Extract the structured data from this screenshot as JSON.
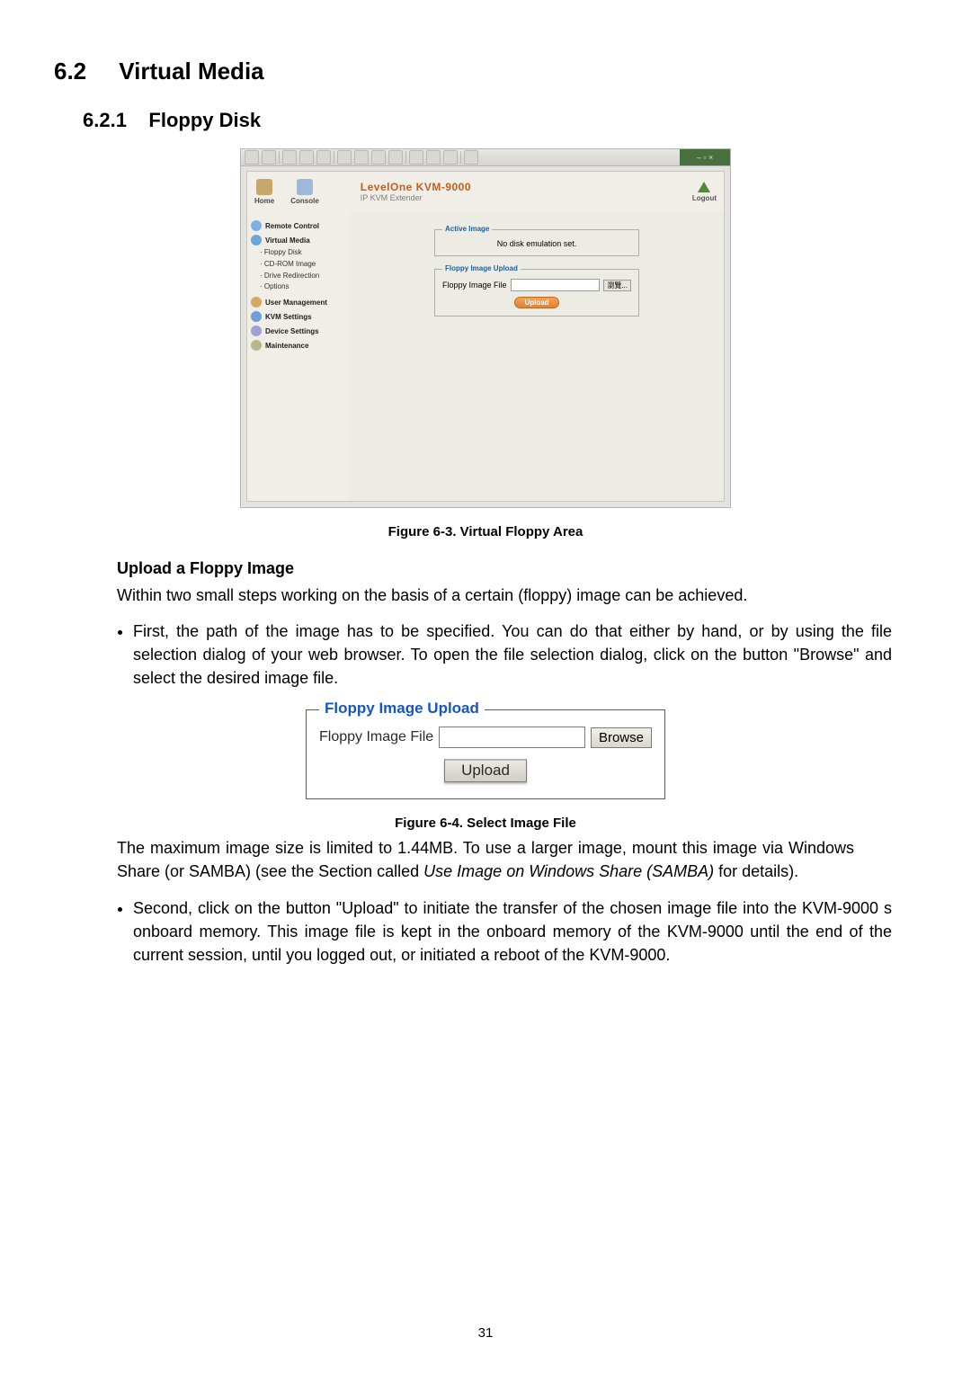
{
  "section_number": "6.2",
  "section_title": "Virtual Media",
  "subsection_number": "6.2.1",
  "subsection_title": "Floppy Disk",
  "page_number": "31",
  "screenshot": {
    "window_controls": "– ▫ ×",
    "header": {
      "home_label": "Home",
      "console_label": "Console",
      "brand_line1": "LevelOne KVM-9000",
      "brand_line2": "IP KVM Extender",
      "logout_label": "Logout",
      "brand_color": "#c06020",
      "logo_color": "#4f8a3a"
    },
    "sidebar": {
      "items": [
        {
          "label": "Remote Control",
          "icon_color": "#7bb0e4"
        },
        {
          "label": "Virtual Media",
          "icon_color": "#6fa6d8",
          "subs": [
            "Floppy Disk",
            "CD-ROM Image",
            "Drive Redirection",
            "Options"
          ]
        },
        {
          "label": "User Management",
          "icon_color": "#d4a860"
        },
        {
          "label": "KVM Settings",
          "icon_color": "#6f9fd4"
        },
        {
          "label": "Device Settings",
          "icon_color": "#9fa0d6"
        },
        {
          "label": "Maintenance",
          "icon_color": "#b5b88c"
        }
      ]
    },
    "content": {
      "active_image_legend": "Active Image",
      "active_image_text": "No disk emulation set.",
      "upload_legend": "Floppy Image Upload",
      "upload_label": "Floppy Image File",
      "browse_label": "瀏覽...",
      "upload_button": "Upload"
    },
    "background_color": "#e4e3dd",
    "panel_color": "#f0eee7"
  },
  "figure1_caption": "Figure 6-3. Virtual Floppy Area",
  "subhead_upload": "Upload a Floppy Image",
  "para_intro": "Within two small steps working on the basis of a certain (floppy) image can be achieved.",
  "bullet1": "First, the path of the image has to be specified. You can do that either by hand, or by using the file selection dialog of your web browser. To open the file selection dialog, click on the button \"Browse\" and select the desired image file.",
  "detail_fieldset": {
    "legend": "Floppy Image Upload",
    "label": "Floppy Image File",
    "browse": "Browse",
    "upload": "Upload",
    "legend_color": "#1556c4",
    "border_color": "#5b5b54"
  },
  "figure2_caption": "Figure 6-4. Select Image File",
  "para_maxsize_a": "The maximum image size is limited to 1.44MB. To use a larger image, mount this image via Windows Share (or SAMBA) (see the Section called ",
  "para_maxsize_italic": "Use Image on Windows Share (SAMBA)",
  "para_maxsize_b": " for details).",
  "bullet2": "Second, click on the button \"Upload\" to initiate the transfer of the chosen image file into the KVM-9000 s onboard memory. This image file is kept in the onboard memory of the KVM-9000 until the end of the current session, until you logged out, or initiated a reboot of the KVM-9000."
}
